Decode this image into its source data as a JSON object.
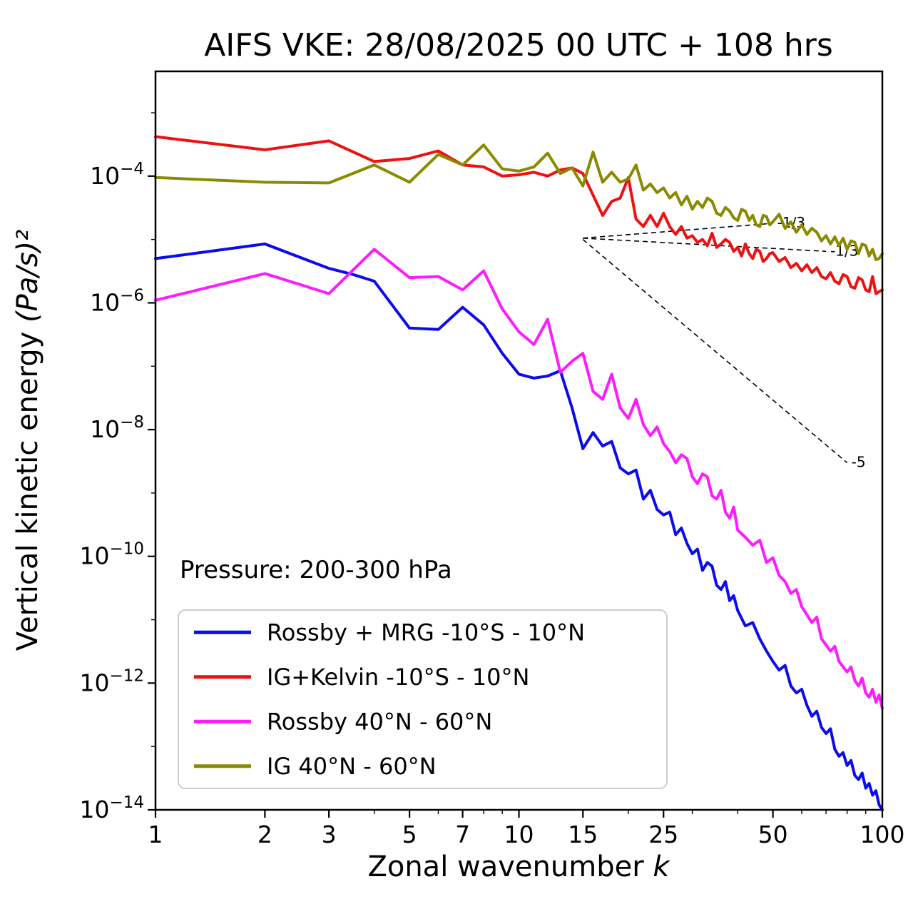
{
  "chart_data": {
    "type": "line",
    "title": "AIFS VKE: 28/08/2025 00 UTC + 108 hrs",
    "xlabel_text": "Zonal wavenumber ",
    "xlabel_italic": "k",
    "ylabel_text": "Vertical kinetic energy ",
    "ylabel_italic": "(Pa/s)²",
    "xscale": "log",
    "yscale": "log",
    "xlim": [
      1,
      100
    ],
    "ylim": [
      1e-14,
      0.0045
    ],
    "grid": false,
    "legend_position": "lower left",
    "x_ticks": [
      1,
      2,
      3,
      5,
      7,
      10,
      15,
      25,
      50,
      100
    ],
    "x_minor_ticks": [
      4,
      6,
      8,
      9,
      20,
      30,
      40,
      60,
      70,
      80,
      90
    ],
    "y_tick_exponents": [
      -14,
      -12,
      -10,
      -8,
      -6,
      -4
    ],
    "y_minor_tick_exponents": [
      -13,
      -11,
      -9,
      -7,
      -5,
      -3
    ],
    "annotations": {
      "pressure": "Pressure: 200-300 hPa"
    },
    "reference_lines": [
      {
        "label": "-1/3",
        "x1": 15,
        "y1": 1.05e-05,
        "x2": 50,
        "y2": 1.8e-05
      },
      {
        "label": "-1/3",
        "x1": 15,
        "y1": 1.05e-05,
        "x2": 70,
        "y2": 6.5e-06
      },
      {
        "label": "-5",
        "x1": 15,
        "y1": 1e-05,
        "x2": 80,
        "y2": 3e-09
      }
    ],
    "series": [
      {
        "name": "Rossby + MRG -10°S - 10°N",
        "color": "#0b0bee",
        "points": [
          [
            1,
            5e-06
          ],
          [
            2,
            8.5e-06
          ],
          [
            3,
            3.5e-06
          ],
          [
            3.5,
            2.8e-06
          ],
          [
            4,
            2.2e-06
          ],
          [
            5,
            4e-07
          ],
          [
            6,
            3.8e-07
          ],
          [
            7,
            8.5e-07
          ],
          [
            8,
            4.5e-07
          ],
          [
            9,
            1.6e-07
          ],
          [
            10,
            7.5e-08
          ],
          [
            11,
            6.5e-08
          ],
          [
            12,
            7e-08
          ],
          [
            13,
            8.5e-08
          ],
          [
            14,
            2.2e-08
          ],
          [
            15,
            5e-09
          ],
          [
            16,
            9e-09
          ],
          [
            17,
            5.5e-09
          ],
          [
            18,
            6.5e-09
          ],
          [
            19,
            2.5e-09
          ],
          [
            20,
            2e-09
          ],
          [
            21,
            2.3e-09
          ],
          [
            22,
            8e-10
          ],
          [
            23,
            1.1e-09
          ],
          [
            24,
            5.5e-10
          ],
          [
            25,
            4.5e-10
          ],
          [
            26,
            5e-10
          ],
          [
            27,
            2.2e-10
          ],
          [
            28,
            2.8e-10
          ],
          [
            29,
            1.6e-10
          ],
          [
            30,
            1.1e-10
          ],
          [
            31,
            1.3e-10
          ],
          [
            32,
            6e-11
          ],
          [
            33,
            8e-11
          ],
          [
            34,
            7e-11
          ],
          [
            35,
            3.5e-11
          ],
          [
            36,
            3e-11
          ],
          [
            37,
            4e-11
          ],
          [
            38,
            2e-11
          ],
          [
            39,
            2.4e-11
          ],
          [
            40,
            1.4e-11
          ],
          [
            42,
            8e-12
          ],
          [
            44,
            9e-12
          ],
          [
            46,
            5e-12
          ],
          [
            48,
            3.2e-12
          ],
          [
            50,
            2.2e-12
          ],
          [
            52,
            1.6e-12
          ],
          [
            54,
            1.9e-12
          ],
          [
            56,
            9e-13
          ],
          [
            58,
            7e-13
          ],
          [
            60,
            8e-13
          ],
          [
            62,
            4.5e-13
          ],
          [
            64,
            3e-13
          ],
          [
            66,
            3.6e-13
          ],
          [
            68,
            2e-13
          ],
          [
            70,
            1.6e-13
          ],
          [
            72,
            1.9e-13
          ],
          [
            74,
            9e-14
          ],
          [
            76,
            7e-14
          ],
          [
            78,
            8e-14
          ],
          [
            80,
            5e-14
          ],
          [
            82,
            6e-14
          ],
          [
            84,
            3.5e-14
          ],
          [
            86,
            3e-14
          ],
          [
            88,
            3.8e-14
          ],
          [
            90,
            2.2e-14
          ],
          [
            92,
            2.6e-14
          ],
          [
            94,
            1.7e-14
          ],
          [
            96,
            2e-14
          ],
          [
            98,
            1.2e-14
          ],
          [
            100,
            1e-14
          ]
        ]
      },
      {
        "name": "IG+Kelvin -10°S - 10°N",
        "color": "#ee1111",
        "points": [
          [
            1,
            0.00042
          ],
          [
            2,
            0.00026
          ],
          [
            3,
            0.00036
          ],
          [
            4,
            0.00017
          ],
          [
            5,
            0.00019
          ],
          [
            6,
            0.00025
          ],
          [
            7,
            0.00015
          ],
          [
            8,
            0.00014
          ],
          [
            9,
            0.0001
          ],
          [
            10,
            0.000105
          ],
          [
            11,
            0.000115
          ],
          [
            12,
            0.0001
          ],
          [
            13,
            0.000125
          ],
          [
            14,
            0.000135
          ],
          [
            15,
            0.00011
          ],
          [
            16,
            5e-05
          ],
          [
            17,
            2.4e-05
          ],
          [
            18,
            4e-05
          ],
          [
            19,
            4.5e-05
          ],
          [
            20,
            9.5e-05
          ],
          [
            21,
            2.1e-05
          ],
          [
            22,
            1.6e-05
          ],
          [
            23,
            2.4e-05
          ],
          [
            24,
            1.6e-05
          ],
          [
            25,
            2.6e-05
          ],
          [
            26,
            1.6e-05
          ],
          [
            27,
            1.2e-05
          ],
          [
            28,
            1.6e-05
          ],
          [
            29,
            1.05e-05
          ],
          [
            30,
            1.15e-05
          ],
          [
            31,
            9e-06
          ],
          [
            32,
            1e-05
          ],
          [
            33,
            8e-06
          ],
          [
            34,
            1.25e-05
          ],
          [
            35,
            7.5e-06
          ],
          [
            36,
            8.5e-06
          ],
          [
            37,
            1e-05
          ],
          [
            38,
            9e-06
          ],
          [
            39,
            6.5e-06
          ],
          [
            40,
            7.5e-06
          ],
          [
            41,
            5.5e-06
          ],
          [
            42,
            8.5e-06
          ],
          [
            43,
            6e-06
          ],
          [
            44,
            5e-06
          ],
          [
            45,
            7e-06
          ],
          [
            46,
            6.5e-06
          ],
          [
            47,
            4.5e-06
          ],
          [
            48,
            5e-06
          ],
          [
            49,
            6e-06
          ],
          [
            50,
            6.2e-06
          ],
          [
            52,
            4.5e-06
          ],
          [
            54,
            5.2e-06
          ],
          [
            56,
            3.6e-06
          ],
          [
            58,
            4.2e-06
          ],
          [
            60,
            3.2e-06
          ],
          [
            62,
            4e-06
          ],
          [
            64,
            3e-06
          ],
          [
            66,
            3.6e-06
          ],
          [
            68,
            2.6e-06
          ],
          [
            70,
            2.4e-06
          ],
          [
            72,
            3e-06
          ],
          [
            74,
            2.2e-06
          ],
          [
            76,
            2e-06
          ],
          [
            78,
            2.8e-06
          ],
          [
            80,
            2.6e-06
          ],
          [
            82,
            1.8e-06
          ],
          [
            84,
            1.7e-06
          ],
          [
            86,
            2.5e-06
          ],
          [
            88,
            2.3e-06
          ],
          [
            90,
            1.6e-06
          ],
          [
            92,
            1.5e-06
          ],
          [
            94,
            2.6e-06
          ],
          [
            96,
            1.4e-06
          ],
          [
            98,
            1.5e-06
          ],
          [
            100,
            1.6e-06
          ]
        ]
      },
      {
        "name": "Rossby 40°N - 60°N",
        "color": "#ff1aff",
        "points": [
          [
            1,
            1.1e-06
          ],
          [
            2,
            2.9e-06
          ],
          [
            3,
            1.4e-06
          ],
          [
            4,
            7e-06
          ],
          [
            5,
            2.5e-06
          ],
          [
            6,
            2.6e-06
          ],
          [
            7,
            1.6e-06
          ],
          [
            8,
            3.2e-06
          ],
          [
            9,
            8e-07
          ],
          [
            10,
            3.5e-07
          ],
          [
            11,
            2.2e-07
          ],
          [
            12,
            5.5e-07
          ],
          [
            13,
            8e-08
          ],
          [
            14,
            1.2e-07
          ],
          [
            15,
            1.6e-07
          ],
          [
            16,
            4e-08
          ],
          [
            17,
            3e-08
          ],
          [
            18,
            7.5e-08
          ],
          [
            19,
            2.2e-08
          ],
          [
            20,
            1.5e-08
          ],
          [
            21,
            3e-08
          ],
          [
            22,
            1.2e-08
          ],
          [
            23,
            8e-09
          ],
          [
            24,
            1.1e-08
          ],
          [
            25,
            6e-09
          ],
          [
            26,
            4.5e-09
          ],
          [
            27,
            3e-09
          ],
          [
            28,
            4e-09
          ],
          [
            29,
            3.5e-09
          ],
          [
            30,
            1.8e-09
          ],
          [
            31,
            1.4e-09
          ],
          [
            32,
            2e-09
          ],
          [
            33,
            1.8e-09
          ],
          [
            34,
            9e-10
          ],
          [
            35,
            8e-10
          ],
          [
            36,
            1.1e-09
          ],
          [
            37,
            5e-10
          ],
          [
            38,
            4e-10
          ],
          [
            39,
            6e-10
          ],
          [
            40,
            2.6e-10
          ],
          [
            42,
            2e-10
          ],
          [
            44,
            1.5e-10
          ],
          [
            46,
            1.8e-10
          ],
          [
            48,
            8e-11
          ],
          [
            50,
            9.5e-11
          ],
          [
            52,
            5e-11
          ],
          [
            54,
            4e-11
          ],
          [
            56,
            2.6e-11
          ],
          [
            58,
            3e-11
          ],
          [
            60,
            1.6e-11
          ],
          [
            62,
            1.2e-11
          ],
          [
            64,
            9e-12
          ],
          [
            66,
            1.1e-11
          ],
          [
            68,
            5e-12
          ],
          [
            70,
            4e-12
          ],
          [
            72,
            3.2e-12
          ],
          [
            74,
            3.8e-12
          ],
          [
            76,
            2.2e-12
          ],
          [
            78,
            1.8e-12
          ],
          [
            80,
            1.5e-12
          ],
          [
            82,
            1.8e-12
          ],
          [
            84,
            1.1e-12
          ],
          [
            86,
            9e-13
          ],
          [
            88,
            1.2e-12
          ],
          [
            90,
            7e-13
          ],
          [
            92,
            6e-13
          ],
          [
            94,
            8e-13
          ],
          [
            96,
            5e-13
          ],
          [
            98,
            6.5e-13
          ],
          [
            100,
            4e-13
          ]
        ]
      },
      {
        "name": "IG 40°N - 60°N",
        "color": "#8a8a00",
        "points": [
          [
            1,
            9.5e-05
          ],
          [
            2,
            8e-05
          ],
          [
            3,
            7.8e-05
          ],
          [
            4,
            0.00015
          ],
          [
            5,
            8e-05
          ],
          [
            6,
            0.00022
          ],
          [
            7,
            0.00015
          ],
          [
            8,
            0.00031
          ],
          [
            9,
            0.00013
          ],
          [
            10,
            0.00012
          ],
          [
            11,
            0.00014
          ],
          [
            12,
            0.00023
          ],
          [
            13,
            0.00011
          ],
          [
            14,
            0.000135
          ],
          [
            15,
            7e-05
          ],
          [
            16,
            0.00024
          ],
          [
            17,
            8e-05
          ],
          [
            18,
            0.000115
          ],
          [
            19,
            8e-05
          ],
          [
            20,
            9e-05
          ],
          [
            21,
            0.00015
          ],
          [
            22,
            6e-05
          ],
          [
            23,
            7.5e-05
          ],
          [
            24,
            5.5e-05
          ],
          [
            25,
            6.5e-05
          ],
          [
            26,
            4.5e-05
          ],
          [
            27,
            5.5e-05
          ],
          [
            28,
            3.5e-05
          ],
          [
            29,
            4.8e-05
          ],
          [
            30,
            3e-05
          ],
          [
            31,
            4e-05
          ],
          [
            32,
            3.2e-05
          ],
          [
            33,
            4.5e-05
          ],
          [
            34,
            4e-05
          ],
          [
            35,
            2.6e-05
          ],
          [
            36,
            2.4e-05
          ],
          [
            37,
            3.2e-05
          ],
          [
            38,
            2.8e-05
          ],
          [
            39,
            2.2e-05
          ],
          [
            40,
            2e-05
          ],
          [
            41,
            3e-05
          ],
          [
            42,
            2.8e-05
          ],
          [
            43,
            2e-05
          ],
          [
            44,
            2.4e-05
          ],
          [
            45,
            1.7e-05
          ],
          [
            46,
            1.6e-05
          ],
          [
            47,
            2.4e-05
          ],
          [
            48,
            2.3e-05
          ],
          [
            49,
            1.7e-05
          ],
          [
            50,
            1.9e-05
          ],
          [
            52,
            2.5e-05
          ],
          [
            54,
            1.5e-05
          ],
          [
            56,
            1.9e-05
          ],
          [
            58,
            1.3e-05
          ],
          [
            60,
            1.7e-05
          ],
          [
            62,
            1.2e-05
          ],
          [
            64,
            1.5e-05
          ],
          [
            66,
            1.3e-05
          ],
          [
            68,
            9.5e-06
          ],
          [
            70,
            1.15e-05
          ],
          [
            72,
            8.5e-06
          ],
          [
            74,
            1.1e-05
          ],
          [
            76,
            8e-06
          ],
          [
            78,
            1.05e-05
          ],
          [
            80,
            7e-06
          ],
          [
            82,
            9.5e-06
          ],
          [
            84,
            9e-06
          ],
          [
            86,
            6e-06
          ],
          [
            88,
            8.5e-06
          ],
          [
            90,
            8e-06
          ],
          [
            92,
            5.5e-06
          ],
          [
            94,
            7e-06
          ],
          [
            96,
            4.8e-06
          ],
          [
            98,
            5e-06
          ],
          [
            100,
            6e-06
          ]
        ]
      }
    ]
  }
}
